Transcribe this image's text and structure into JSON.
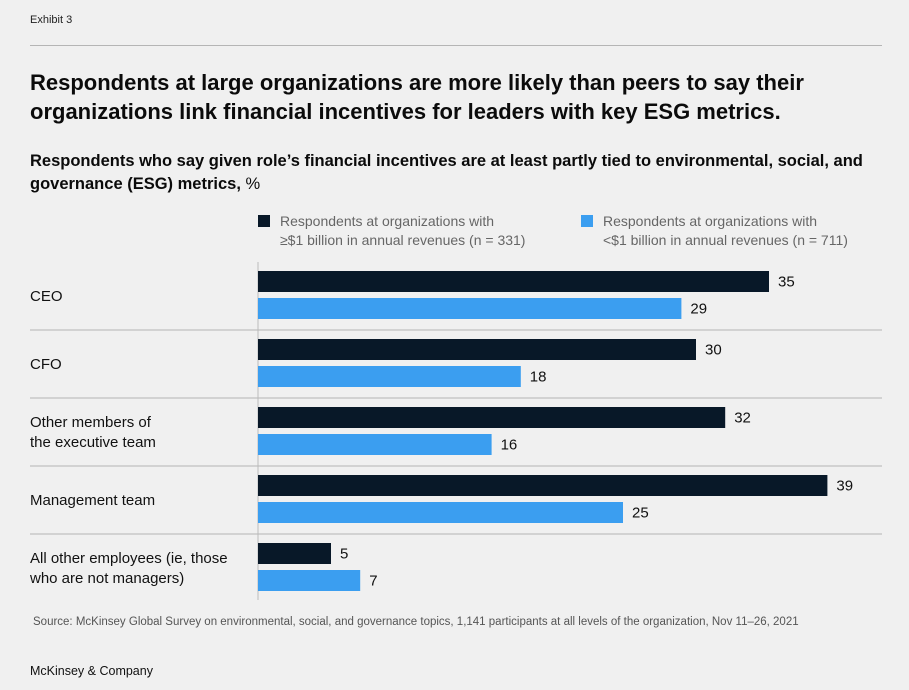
{
  "exhibit_label": "Exhibit 3",
  "title": "Respondents at large organizations are more likely than peers to say their organizations link financial incentives for leaders with key ESG metrics.",
  "subtitle": "Respondents who say given role’s financial incentives are at least partly tied to environmental, social, and governance (ESG) metrics,",
  "subtitle_unit": "%",
  "colors": {
    "large": "#081828",
    "small": "#3b9ef0"
  },
  "legend": [
    {
      "name": "Respondents at organizations with\n≥$1 billion in annual revenues (n = 331)",
      "color": "#081828"
    },
    {
      "name": "Respondents at organizations with\n<$1 billion in annual revenues (n = 711)",
      "color": "#3b9ef0"
    }
  ],
  "chart_data": {
    "type": "bar",
    "orientation": "horizontal",
    "title": "Respondents who say given role’s financial incentives are at least partly tied to environmental, social, and governance (ESG) metrics, %",
    "categories": [
      "CEO",
      "CFO",
      "Other members of\nthe executive team",
      "Management team",
      "All other employees (ie, those\nwho are not managers)"
    ],
    "series": [
      {
        "name": "Respondents at organizations with ≥$1 billion in annual revenues (n = 331)",
        "values": [
          35,
          30,
          32,
          39,
          5
        ]
      },
      {
        "name": "Respondents at organizations with <$1 billion in annual revenues (n = 711)",
        "values": [
          29,
          18,
          16,
          25,
          7
        ]
      }
    ],
    "xlim": [
      0,
      39
    ],
    "xlabel": "",
    "ylabel": "",
    "grid": false,
    "legend_position": "top"
  },
  "source": "Source: McKinsey Global Survey on environmental, social, and governance topics, 1,141 participants at all levels of the organization, Nov 11–26, 2021",
  "brand": "McKinsey & Company"
}
